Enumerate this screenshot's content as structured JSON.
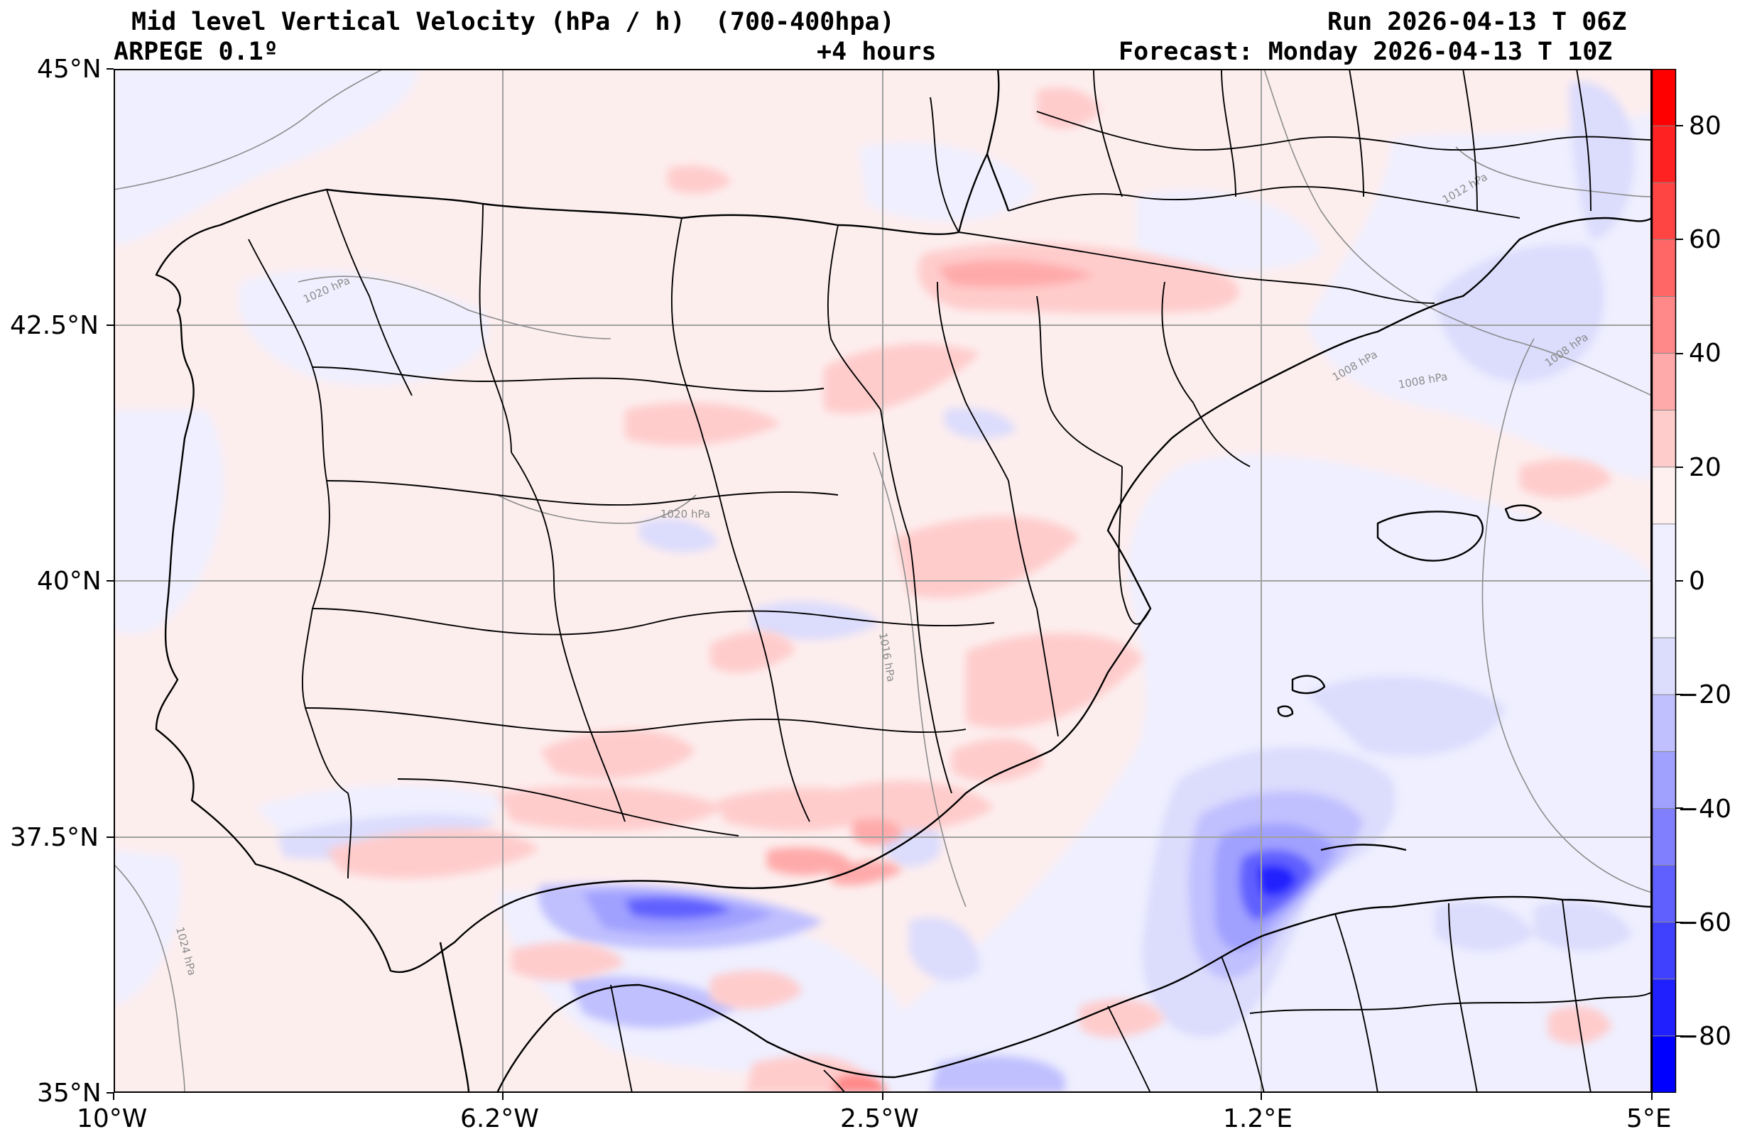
{
  "header": {
    "title": "Mid level Vertical Velocity (hPa / h)  (700-400hpa)",
    "model": "ARPEGE 0.1º",
    "lead": "+4 hours",
    "run": "Run 2026-04-13 T 06Z",
    "forecast": "Forecast: Monday 2026-04-13 T 10Z"
  },
  "axes": {
    "lat_labels": [
      "45°N",
      "42.5°N",
      "40°N",
      "37.5°N",
      "35°N"
    ],
    "lon_labels": [
      "10°W",
      "6.2°W",
      "2.5°W",
      "1.2°E",
      "5°E"
    ]
  },
  "isobars": [
    "1020 hPa",
    "1012 hPa",
    "1008 hPa",
    "1008 hPa",
    "1008 hPa",
    "1020 hPa",
    "1016 hPa",
    "1024 hPa"
  ],
  "colorbar": {
    "ticks": [
      "80",
      "60",
      "40",
      "20",
      "0",
      "−20",
      "−40",
      "−60",
      "−80"
    ],
    "levels": [
      -90,
      -80,
      -70,
      -60,
      -50,
      -40,
      -30,
      -20,
      -10,
      10,
      20,
      30,
      40,
      50,
      60,
      70,
      80,
      90
    ],
    "colors": [
      "#0000ff",
      "#2020ff",
      "#4040ff",
      "#6060ff",
      "#8080ff",
      "#a0a0ff",
      "#c0c0ff",
      "#dcdcfd",
      "#efefff",
      "#fff0f0",
      "#ffcccc",
      "#ffaaaa",
      "#ff8888",
      "#ff6666",
      "#ff4444",
      "#ff2222",
      "#ff0000"
    ]
  },
  "colors": {
    "background": "#fdeeee",
    "coast": "#000000",
    "grid": "#a0a0a0",
    "isobar": "#8c8c8c"
  }
}
